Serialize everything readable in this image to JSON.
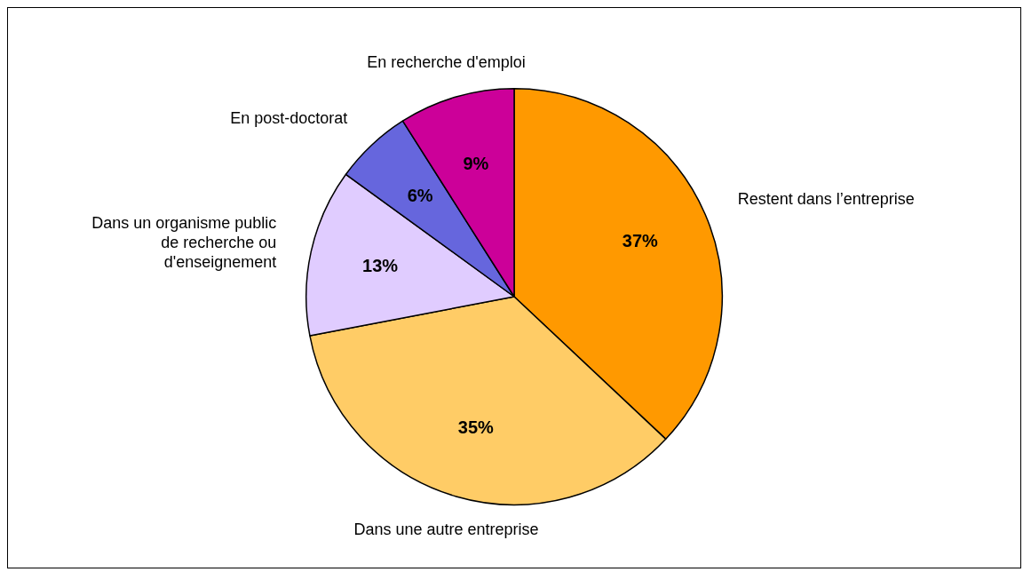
{
  "chart_data": {
    "type": "pie",
    "categories": [
      "Restent dans l’entreprise",
      "Dans une autre entreprise",
      "Dans un organisme public de recherche ou d'enseignement",
      "En post-doctorat",
      "En recherche d'emploi"
    ],
    "values": [
      37,
      35,
      13,
      6,
      9
    ],
    "colors": [
      "#ff9900",
      "#ffcc66",
      "#e0ccff",
      "#6666dd",
      "#cc0099"
    ],
    "value_labels": [
      "37%",
      "35%",
      "13%",
      "6%",
      "9%"
    ],
    "legend": false
  }
}
